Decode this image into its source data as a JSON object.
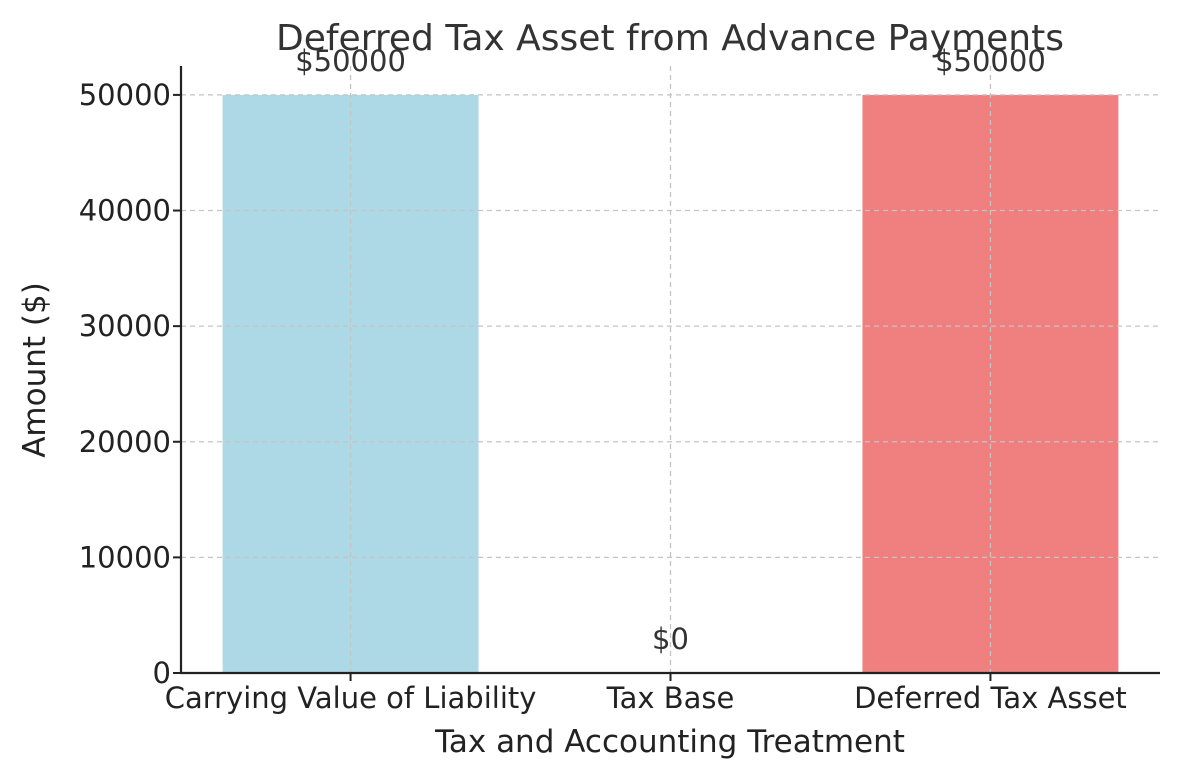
{
  "chart_data": {
    "type": "bar",
    "title": "Deferred Tax Asset from Advance Payments",
    "xlabel": "Tax and Accounting Treatment",
    "ylabel": "Amount ($)",
    "categories": [
      "Carrying Value of Liability",
      "Tax Base",
      "Deferred Tax Asset"
    ],
    "values": [
      50000,
      0,
      50000
    ],
    "data_labels": [
      "$50000",
      "$0",
      "$50000"
    ],
    "bar_colors": [
      "#add8e6",
      "#add8e6",
      "#f08080"
    ],
    "ylim": [
      0,
      52500
    ],
    "yticks": [
      0,
      10000,
      20000,
      30000,
      40000,
      50000
    ],
    "ytick_labels": [
      "0",
      "10000",
      "20000",
      "30000",
      "40000",
      "50000"
    ],
    "grid": true
  }
}
